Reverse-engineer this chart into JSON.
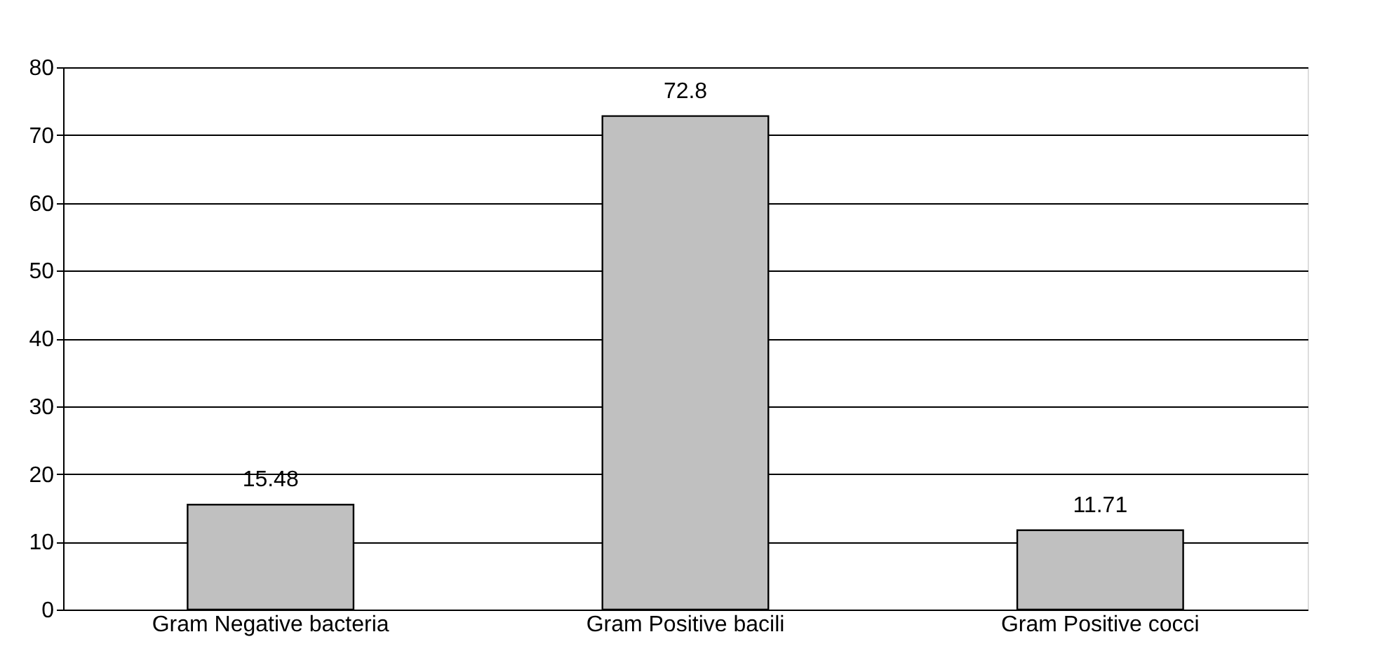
{
  "chart_data": {
    "type": "bar",
    "categories": [
      "Gram Negative bacteria",
      "Gram Positive bacili",
      "Gram Positive cocci"
    ],
    "values": [
      15.48,
      72.8,
      11.71
    ],
    "color": "#c0c0c0",
    "ylim": [
      0,
      80
    ],
    "yticks": [
      0,
      10,
      20,
      30,
      40,
      50,
      60,
      70,
      80
    ],
    "grid": "y",
    "data_labels": true
  }
}
